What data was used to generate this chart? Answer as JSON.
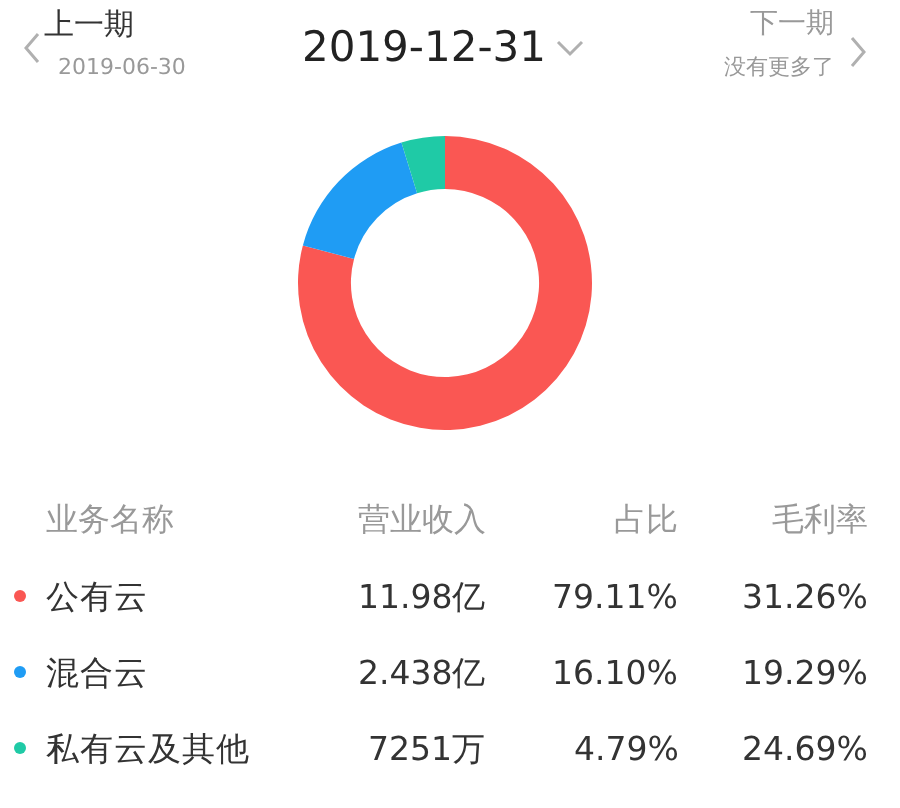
{
  "chart_data": {
    "type": "donut",
    "title": "2019-12-31",
    "categories": [
      "公有云",
      "混合云",
      "私有云及其他"
    ],
    "values": [
      79.11,
      16.1,
      4.79
    ],
    "colors": [
      "#fa5753",
      "#1f9cf4",
      "#1fcaa6"
    ],
    "value_labels": [
      "79.11%",
      "16.10%",
      "4.79%"
    ],
    "legend": "bottom left",
    "legend_title": "业务名称",
    "annotations": [
      "上一期",
      "2019-06-30",
      "下一期",
      "没有更多了",
      "营业收入",
      "11.98亿",
      "2.438亿",
      "7251万",
      "占比",
      "毛利率",
      "31.26%",
      "19.29%",
      "24.69%"
    ]
  }
}
